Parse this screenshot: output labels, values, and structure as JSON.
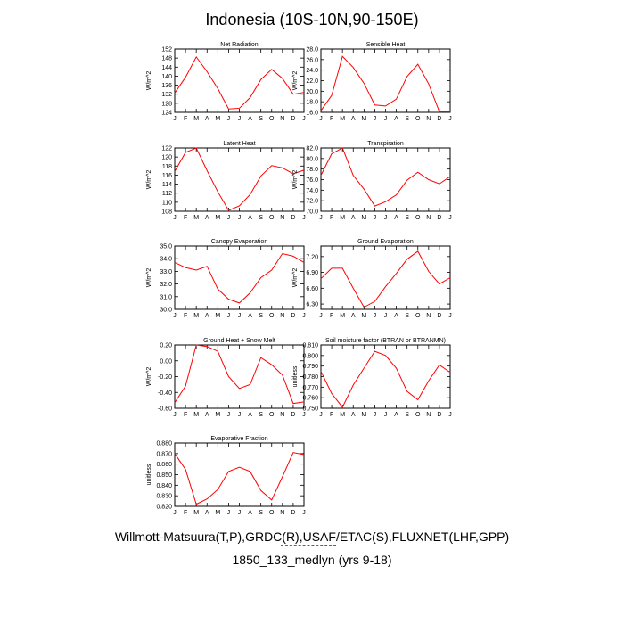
{
  "title": "Indonesia (10S-10N,90-150E)",
  "footer": {
    "line1": "Willmott-Matsuura(T,P),GRDC(R),USAF/ETAC(S),FLUXNET(LHF,GPP)",
    "line2": "1850_133_medlyn (yrs 9-18)"
  },
  "colors": {
    "series": "#ff0000",
    "axes": "#000000",
    "underline1": "#3b5fd6",
    "underline2": "#e35d72"
  },
  "months": [
    "J",
    "F",
    "M",
    "A",
    "M",
    "J",
    "J",
    "A",
    "S",
    "O",
    "N",
    "D",
    "J"
  ],
  "chart_data": [
    {
      "type": "line",
      "title": "Net Radiation",
      "ylabel": "W/m^2",
      "ylim": [
        124,
        152
      ],
      "yticks": [
        124,
        128,
        132,
        136,
        140,
        144,
        148,
        152
      ],
      "decimals": 0,
      "values": [
        132.5,
        139.5,
        148.5,
        142,
        134.5,
        125.5,
        125.8,
        130.5,
        138.5,
        143,
        139,
        132,
        132.8
      ]
    },
    {
      "type": "line",
      "title": "Sensible Heat",
      "ylabel": "W/m^2",
      "ylim": [
        16,
        28
      ],
      "yticks": [
        16,
        18,
        20,
        22,
        24,
        26,
        28
      ],
      "decimals": 1,
      "values": [
        16.3,
        19.2,
        26.6,
        24.5,
        21.5,
        17.4,
        17.2,
        18.5,
        22.8,
        25.1,
        21.4,
        16.1,
        16.1
      ]
    },
    {
      "type": "line",
      "title": "Latent Heat",
      "ylabel": "W/m^2",
      "ylim": [
        108,
        122
      ],
      "yticks": [
        108,
        110,
        112,
        114,
        116,
        118,
        120,
        122
      ],
      "decimals": 0,
      "values": [
        116.8,
        121,
        122,
        117,
        112.3,
        108.2,
        109.2,
        111.7,
        115.8,
        118.1,
        117.6,
        116.3,
        117.1
      ]
    },
    {
      "type": "line",
      "title": "Transpiration",
      "ylabel": "W/m^2",
      "ylim": [
        70,
        82
      ],
      "yticks": [
        70,
        72,
        74,
        76,
        78,
        80,
        82
      ],
      "decimals": 1,
      "values": [
        76.8,
        80.9,
        82.0,
        76.8,
        74.2,
        71.0,
        71.8,
        73.1,
        75.9,
        77.4,
        76.0,
        75.2,
        76.6
      ]
    },
    {
      "type": "line",
      "title": "Canopy Evaporation",
      "ylabel": "W/m^2",
      "ylim": [
        30,
        35
      ],
      "yticks": [
        30,
        31,
        32,
        33,
        34,
        35
      ],
      "decimals": 1,
      "values": [
        33.7,
        33.3,
        33.1,
        33.4,
        31.6,
        30.8,
        30.5,
        31.3,
        32.5,
        33.1,
        34.4,
        34.2,
        33.7
      ]
    },
    {
      "type": "line",
      "title": "Ground Evaporation",
      "ylabel": "W/m^2",
      "ylim": [
        6.2,
        7.4
      ],
      "yticks": [
        6.3,
        6.6,
        6.9,
        7.2
      ],
      "decimals": 2,
      "values": [
        6.78,
        6.98,
        6.98,
        6.6,
        6.24,
        6.35,
        6.63,
        6.88,
        7.15,
        7.3,
        6.92,
        6.68,
        6.8
      ]
    },
    {
      "type": "line",
      "title": "Ground Heat + Snow Melt",
      "ylabel": "W/m^2",
      "ylim": [
        -0.6,
        0.2
      ],
      "yticks": [
        -0.6,
        -0.4,
        -0.2,
        0.0,
        0.2
      ],
      "decimals": 2,
      "values": [
        -0.53,
        -0.32,
        0.2,
        0.18,
        0.12,
        -0.2,
        -0.35,
        -0.3,
        0.04,
        -0.05,
        -0.18,
        -0.54,
        -0.52
      ]
    },
    {
      "type": "line",
      "title": "Soil moisture factor (BTRAN or BTRANMN)",
      "ylabel": "unitless",
      "ylim": [
        0.75,
        0.81
      ],
      "yticks": [
        0.75,
        0.76,
        0.77,
        0.78,
        0.79,
        0.8,
        0.81
      ],
      "decimals": 3,
      "values": [
        0.785,
        0.764,
        0.751,
        0.772,
        0.788,
        0.804,
        0.8,
        0.788,
        0.766,
        0.758,
        0.776,
        0.791,
        0.784
      ]
    },
    {
      "type": "line",
      "title": "Evaporative Fraction",
      "ylabel": "unitless",
      "ylim": [
        0.82,
        0.88
      ],
      "yticks": [
        0.82,
        0.83,
        0.84,
        0.85,
        0.86,
        0.87,
        0.88
      ],
      "decimals": 3,
      "values": [
        0.87,
        0.855,
        0.822,
        0.827,
        0.836,
        0.853,
        0.857,
        0.853,
        0.835,
        0.826,
        0.848,
        0.871,
        0.869
      ]
    }
  ]
}
